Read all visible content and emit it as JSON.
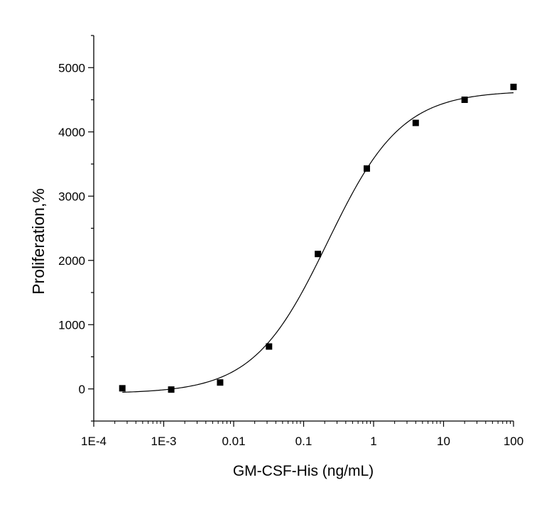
{
  "chart_data": {
    "type": "scatter",
    "title": "",
    "xlabel": "GM-CSF-His (ng/mL)",
    "ylabel": "Proliferation,%",
    "x_scale": "log",
    "xlim": [
      "1E-4",
      100
    ],
    "ylim": [
      -500,
      5500
    ],
    "grid": false,
    "legend": "none",
    "x_ticks": [
      "1E-4",
      "1E-3",
      "0.01",
      "0.1",
      "1",
      "10",
      "100"
    ],
    "y_ticks": [
      "0",
      "1000",
      "2000",
      "3000",
      "4000",
      "5000"
    ],
    "points": {
      "x": [
        0.000256,
        0.00128,
        0.0064,
        0.032,
        0.16,
        0.8,
        4,
        20,
        100
      ],
      "y": [
        10,
        -10,
        100,
        660,
        2100,
        3430,
        4140,
        4500,
        4700
      ]
    },
    "fit": {
      "model": "4PL",
      "bottom": -70,
      "top": 4640,
      "ec50": 0.22,
      "hill": 0.82
    },
    "colors": {
      "marker": "#000000",
      "line": "#000000",
      "axis": "#000000"
    }
  }
}
